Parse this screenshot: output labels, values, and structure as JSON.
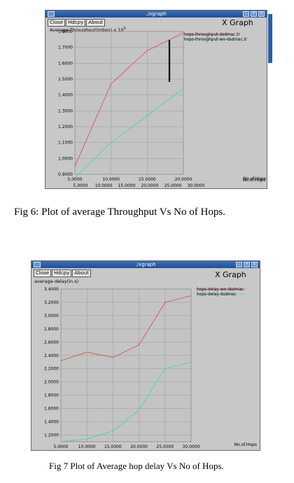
{
  "figure1": {
    "window_title": "./xgraph",
    "buttons": [
      "Close",
      "Hdcpy",
      "About"
    ],
    "app_title": "X Graph",
    "y_axis_label": "Average-Throughput(mbps) x 10^3",
    "caption": "Fig 6: Plot of average Throughput Vs No of Hops.",
    "extra_x_ticks": [
      "5.0000",
      "10.0000",
      "15.0000",
      "20.0000",
      "25.0000",
      "30.0000"
    ],
    "extra_x_label": "No.of.Hops",
    "chart_data": {
      "type": "line",
      "xlabel": "No.of.Hops",
      "ylabel": "Average-Throughput(mbps) x 10^3",
      "xlim": [
        5,
        20
      ],
      "ylim": [
        0.9,
        1.8
      ],
      "x_ticks": [
        "5.0000",
        "10.0000",
        "15.0000",
        "20.0000"
      ],
      "y_ticks": [
        "0.9000",
        "1.0000",
        "1.1000",
        "1.2000",
        "1.3000",
        "1.4000",
        "1.5000",
        "1.6000",
        "1.7000",
        "1.8000"
      ],
      "grid": true,
      "legend": "top-right",
      "series": [
        {
          "name": "hops-throughput-dsdmac.tr",
          "color": "#e05050",
          "x": [
            5,
            10,
            15,
            20
          ],
          "y": [
            0.95,
            1.47,
            1.68,
            1.79
          ]
        },
        {
          "name": "hops-throughput-wo-dsdmac.tr",
          "color": "#40d8a8",
          "x": [
            5,
            10,
            15,
            20
          ],
          "y": [
            0.88,
            1.1,
            1.27,
            1.44
          ]
        }
      ]
    }
  },
  "figure2": {
    "window_title": "./xgraph",
    "buttons": [
      "Close",
      "Hdcpy",
      "About"
    ],
    "app_title": "X Graph",
    "y_axis_label": "average-delay(in s)",
    "caption": "Fig 7 Plot of Average hop delay Vs No of Hops.",
    "chart_data": {
      "type": "line",
      "xlabel": "No.of.Hops",
      "ylabel": "average-delay(in s)",
      "xlim": [
        5,
        30
      ],
      "ylim": [
        1.1,
        3.4
      ],
      "x_ticks": [
        "5.0000",
        "10.0000",
        "15.0000",
        "20.0000",
        "25.0000",
        "30.0000"
      ],
      "y_ticks": [
        "1.2000",
        "1.4000",
        "1.6000",
        "1.8000",
        "2.0000",
        "2.2000",
        "2.4000",
        "2.6000",
        "2.8000",
        "3.0000",
        "3.2000",
        "3.4000"
      ],
      "grid": true,
      "legend": "top-right",
      "series": [
        {
          "name": "hops-delay-wo-dsdmac",
          "color": "#e05050",
          "x": [
            5,
            10,
            15,
            20,
            25,
            30
          ],
          "y": [
            2.32,
            2.45,
            2.37,
            2.56,
            3.2,
            3.3
          ]
        },
        {
          "name": "hops-delay-dsdmac",
          "color": "#40d8a8",
          "x": [
            5,
            10,
            15,
            20,
            25,
            30
          ],
          "y": [
            1.1,
            1.14,
            1.26,
            1.58,
            2.2,
            2.3
          ]
        }
      ]
    }
  }
}
